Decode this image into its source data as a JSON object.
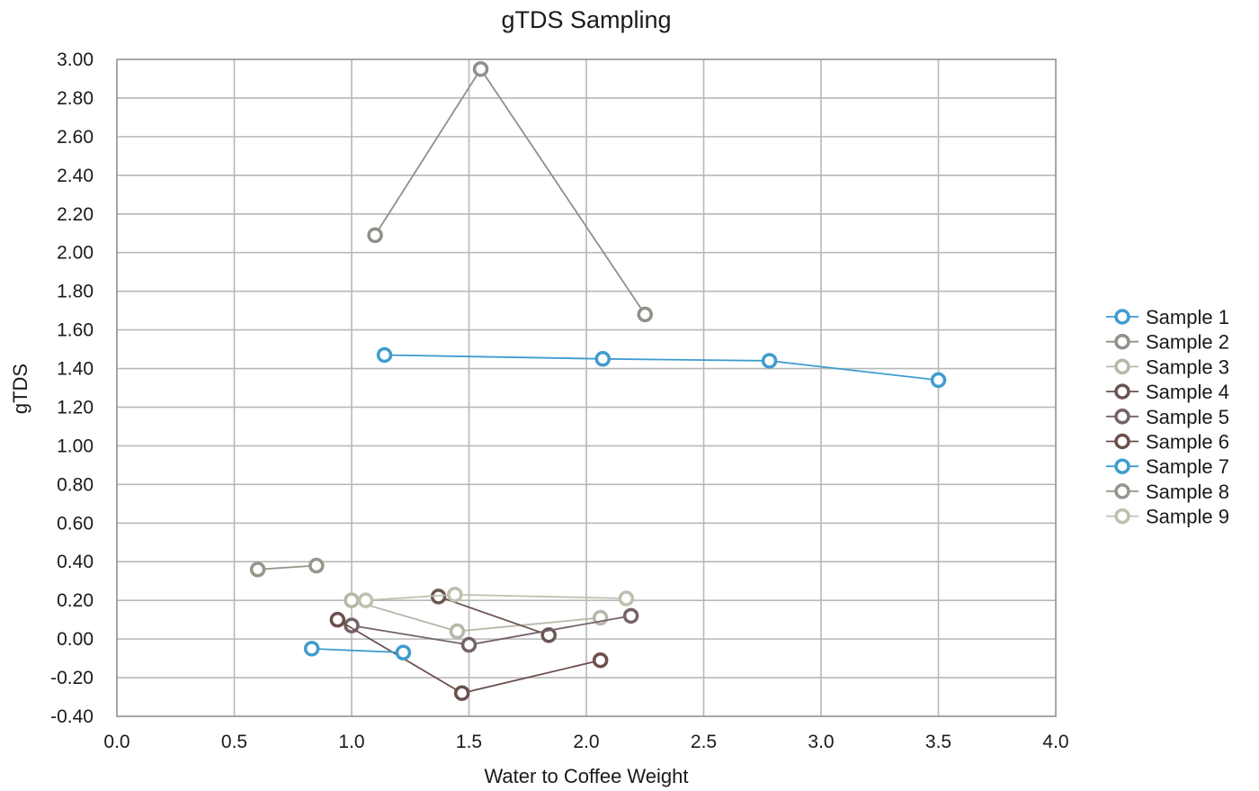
{
  "chart_data": {
    "type": "scatter",
    "title": "gTDS Sampling",
    "xlabel": "Water to Coffee Weight",
    "ylabel": "gTDS",
    "xlim": [
      0.0,
      4.0
    ],
    "ylim": [
      -0.4,
      3.0
    ],
    "x_ticks": [
      0.0,
      0.5,
      1.0,
      1.5,
      2.0,
      2.5,
      3.0,
      3.5,
      4.0
    ],
    "x_tick_labels": [
      "0.0",
      "0.5",
      "1.0",
      "1.5",
      "2.0",
      "2.5",
      "3.0",
      "3.5",
      "4.0"
    ],
    "y_ticks": [
      3.0,
      2.8,
      2.6,
      2.4,
      2.2,
      2.0,
      1.8,
      1.6,
      1.4,
      1.2,
      1.0,
      0.8,
      0.6,
      0.4,
      0.2,
      0.0,
      -0.2,
      -0.4
    ],
    "y_tick_labels": [
      "3.00",
      "2.80",
      "2.60",
      "2.40",
      "2.20",
      "2.00",
      "1.80",
      "1.60",
      "1.40",
      "1.20",
      "1.00",
      "0.80",
      "0.60",
      "0.40",
      "0.20",
      "0.00",
      "-0.20",
      "-0.40"
    ],
    "grid": true,
    "legend_position": "right",
    "lines_connect_points": true,
    "marker": "open-circle",
    "series": [
      {
        "name": "Sample 1",
        "color": "#3f9ccf",
        "points": [
          [
            1.14,
            1.47
          ],
          [
            2.07,
            1.45
          ],
          [
            2.78,
            1.44
          ],
          [
            3.5,
            1.34
          ]
        ]
      },
      {
        "name": "Sample 2",
        "color": "#8f9088",
        "points": [
          [
            1.1,
            2.09
          ],
          [
            1.55,
            2.95
          ],
          [
            2.25,
            1.68
          ]
        ]
      },
      {
        "name": "Sample 3",
        "color": "#b7b7a9",
        "points": [
          [
            1.0,
            0.2
          ],
          [
            1.45,
            0.04
          ],
          [
            2.06,
            0.11
          ]
        ]
      },
      {
        "name": "Sample 4",
        "color": "#6b5552",
        "points": [
          [
            1.37,
            0.22
          ],
          [
            1.84,
            0.02
          ]
        ]
      },
      {
        "name": "Sample 5",
        "color": "#74626a",
        "points": [
          [
            1.0,
            0.07
          ],
          [
            1.5,
            -0.03
          ],
          [
            2.19,
            0.12
          ]
        ]
      },
      {
        "name": "Sample 6",
        "color": "#6b4f4c",
        "points": [
          [
            0.94,
            0.1
          ],
          [
            1.47,
            -0.28
          ],
          [
            2.06,
            -0.11
          ]
        ]
      },
      {
        "name": "Sample 7",
        "color": "#3f9ccf",
        "points": [
          [
            0.83,
            -0.05
          ],
          [
            1.22,
            -0.07
          ]
        ]
      },
      {
        "name": "Sample 8",
        "color": "#939789",
        "points": [
          [
            0.6,
            0.36
          ],
          [
            0.85,
            0.38
          ]
        ]
      },
      {
        "name": "Sample 9",
        "color": "#bfc0b0",
        "points": [
          [
            1.06,
            0.2
          ],
          [
            1.44,
            0.23
          ],
          [
            2.17,
            0.21
          ]
        ]
      }
    ]
  }
}
